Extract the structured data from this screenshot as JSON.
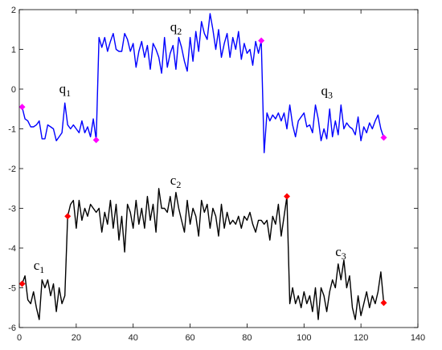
{
  "chart_data": {
    "type": "line",
    "title": "",
    "xlabel": "",
    "ylabel": "",
    "xlim": [
      0,
      140
    ],
    "ylim": [
      -6,
      2
    ],
    "xticks": [
      0,
      20,
      40,
      60,
      80,
      100,
      120,
      140
    ],
    "yticks": [
      -6,
      -5,
      -4,
      -3,
      -2,
      -1,
      0,
      1,
      2
    ],
    "grid": false,
    "series": [
      {
        "color": "#0000ff",
        "x": [
          1,
          2,
          3,
          4,
          5,
          6,
          7,
          8,
          9,
          10,
          11,
          12,
          13,
          14,
          15,
          16,
          17,
          18,
          19,
          20,
          21,
          22,
          23,
          24,
          25,
          26,
          27,
          28,
          29,
          30,
          31,
          32,
          33,
          34,
          35,
          36,
          37,
          38,
          39,
          40,
          41,
          42,
          43,
          44,
          45,
          46,
          47,
          48,
          49,
          50,
          51,
          52,
          53,
          54,
          55,
          56,
          57,
          58,
          59,
          60,
          61,
          62,
          63,
          64,
          65,
          66,
          67,
          68,
          69,
          70,
          71,
          72,
          73,
          74,
          75,
          76,
          77,
          78,
          79,
          80,
          81,
          82,
          83,
          84,
          85,
          86,
          87,
          88,
          89,
          90,
          91,
          92,
          93,
          94,
          95,
          96,
          97,
          98,
          99,
          100,
          101,
          102,
          103,
          104,
          105,
          106,
          107,
          108,
          109,
          110,
          111,
          112,
          113,
          114,
          115,
          116,
          117,
          118,
          119,
          120,
          121,
          122,
          123,
          124,
          125,
          126,
          127,
          128
        ],
        "values": [
          -0.45,
          -0.75,
          -0.8,
          -0.95,
          -0.95,
          -0.9,
          -0.8,
          -1.25,
          -1.25,
          -0.9,
          -0.95,
          -1.0,
          -1.3,
          -1.2,
          -1.1,
          -0.35,
          -0.9,
          -1.0,
          -0.9,
          -1.0,
          -1.1,
          -0.8,
          -1.1,
          -0.95,
          -1.2,
          -0.75,
          -1.28,
          1.3,
          1.05,
          1.3,
          0.95,
          1.2,
          1.4,
          1.0,
          0.95,
          0.95,
          1.4,
          1.25,
          0.95,
          1.15,
          0.55,
          0.95,
          1.2,
          0.8,
          1.1,
          0.5,
          1.15,
          1.0,
          0.8,
          0.4,
          1.3,
          0.55,
          0.9,
          1.1,
          0.5,
          1.3,
          1.05,
          0.7,
          0.45,
          1.3,
          0.7,
          1.45,
          0.95,
          1.7,
          1.4,
          1.25,
          1.9,
          1.5,
          1.0,
          1.5,
          0.8,
          1.15,
          1.4,
          0.8,
          1.3,
          1.0,
          1.45,
          0.75,
          1.15,
          0.9,
          1.0,
          0.6,
          1.2,
          0.9,
          1.22,
          -1.6,
          -0.6,
          -0.8,
          -0.65,
          -0.75,
          -0.6,
          -0.8,
          -0.6,
          -1.0,
          -0.4,
          -0.9,
          -1.2,
          -0.8,
          -0.7,
          -0.6,
          -0.95,
          -0.9,
          -1.1,
          -0.4,
          -0.75,
          -1.3,
          -1.0,
          -1.25,
          -0.5,
          -1.2,
          -0.8,
          -1.15,
          -0.4,
          -1.0,
          -0.85,
          -0.95,
          -1.0,
          -1.15,
          -0.7,
          -1.3,
          -0.95,
          -1.1,
          -0.85,
          -1.0,
          -0.8,
          -0.65,
          -1.0,
          -1.22
        ]
      },
      {
        "color": "#000000",
        "x": [
          1,
          2,
          3,
          4,
          5,
          6,
          7,
          8,
          9,
          10,
          11,
          12,
          13,
          14,
          15,
          16,
          17,
          18,
          19,
          20,
          21,
          22,
          23,
          24,
          25,
          26,
          27,
          28,
          29,
          30,
          31,
          32,
          33,
          34,
          35,
          36,
          37,
          38,
          39,
          40,
          41,
          42,
          43,
          44,
          45,
          46,
          47,
          48,
          49,
          50,
          51,
          52,
          53,
          54,
          55,
          56,
          57,
          58,
          59,
          60,
          61,
          62,
          63,
          64,
          65,
          66,
          67,
          68,
          69,
          70,
          71,
          72,
          73,
          74,
          75,
          76,
          77,
          78,
          79,
          80,
          81,
          82,
          83,
          84,
          85,
          86,
          87,
          88,
          89,
          90,
          91,
          92,
          93,
          94,
          95,
          96,
          97,
          98,
          99,
          100,
          101,
          102,
          103,
          104,
          105,
          106,
          107,
          108,
          109,
          110,
          111,
          112,
          113,
          114,
          115,
          116,
          117,
          118,
          119,
          120,
          121,
          122,
          123,
          124,
          125,
          126,
          127,
          128
        ],
        "values": [
          -4.9,
          -4.7,
          -5.3,
          -5.4,
          -5.1,
          -5.5,
          -5.8,
          -4.8,
          -5.0,
          -4.8,
          -5.2,
          -4.9,
          -5.6,
          -5.0,
          -5.4,
          -5.2,
          -3.2,
          -2.9,
          -2.8,
          -3.5,
          -2.8,
          -3.3,
          -3.0,
          -3.2,
          -2.9,
          -3.0,
          -3.1,
          -3.0,
          -3.6,
          -3.1,
          -3.4,
          -2.8,
          -3.5,
          -2.9,
          -3.8,
          -3.2,
          -4.1,
          -2.9,
          -3.1,
          -3.5,
          -2.8,
          -3.4,
          -3.0,
          -3.5,
          -2.7,
          -3.3,
          -2.9,
          -3.6,
          -2.5,
          -3.0,
          -3.0,
          -3.1,
          -2.7,
          -3.2,
          -2.6,
          -3.0,
          -3.3,
          -3.6,
          -2.8,
          -3.4,
          -3.0,
          -3.2,
          -3.7,
          -2.8,
          -3.1,
          -2.9,
          -3.5,
          -3.0,
          -3.2,
          -3.7,
          -2.9,
          -3.5,
          -3.1,
          -3.4,
          -3.3,
          -3.4,
          -3.2,
          -3.5,
          -3.2,
          -3.3,
          -3.1,
          -3.4,
          -3.6,
          -3.3,
          -3.3,
          -3.4,
          -3.3,
          -3.8,
          -3.2,
          -3.4,
          -2.9,
          -3.7,
          -3.2,
          -2.7,
          -5.4,
          -5.0,
          -5.4,
          -5.2,
          -5.5,
          -5.1,
          -5.4,
          -5.2,
          -5.6,
          -5.0,
          -5.8,
          -5.0,
          -5.2,
          -5.6,
          -5.1,
          -4.8,
          -5.0,
          -4.4,
          -4.8,
          -4.3,
          -5.0,
          -4.7,
          -5.5,
          -5.8,
          -5.2,
          -5.7,
          -5.4,
          -5.1,
          -5.5,
          -5.2,
          -5.4,
          -5.1,
          -4.6,
          -5.38
        ]
      }
    ],
    "markers": [
      {
        "color": "#ff00ff",
        "points": [
          [
            1,
            -0.45
          ],
          [
            27,
            -1.28
          ],
          [
            85,
            1.22
          ],
          [
            128,
            -1.22
          ]
        ]
      },
      {
        "color": "#ff0000",
        "points": [
          [
            1,
            -4.9
          ],
          [
            17,
            -3.2
          ],
          [
            94,
            -2.7
          ],
          [
            128,
            -5.38
          ]
        ]
      }
    ],
    "annotations": [
      {
        "base": "q",
        "sub": "1",
        "x": 14,
        "y": -0.1
      },
      {
        "base": "q",
        "sub": "2",
        "x": 53,
        "y": 1.45
      },
      {
        "base": "q",
        "sub": "3",
        "x": 106,
        "y": -0.15
      },
      {
        "base": "c",
        "sub": "2",
        "x": 53,
        "y": -2.4
      },
      {
        "base": "c",
        "sub": "1",
        "x": 5,
        "y": -4.55
      },
      {
        "base": "c",
        "sub": "3",
        "x": 111,
        "y": -4.2
      }
    ]
  }
}
